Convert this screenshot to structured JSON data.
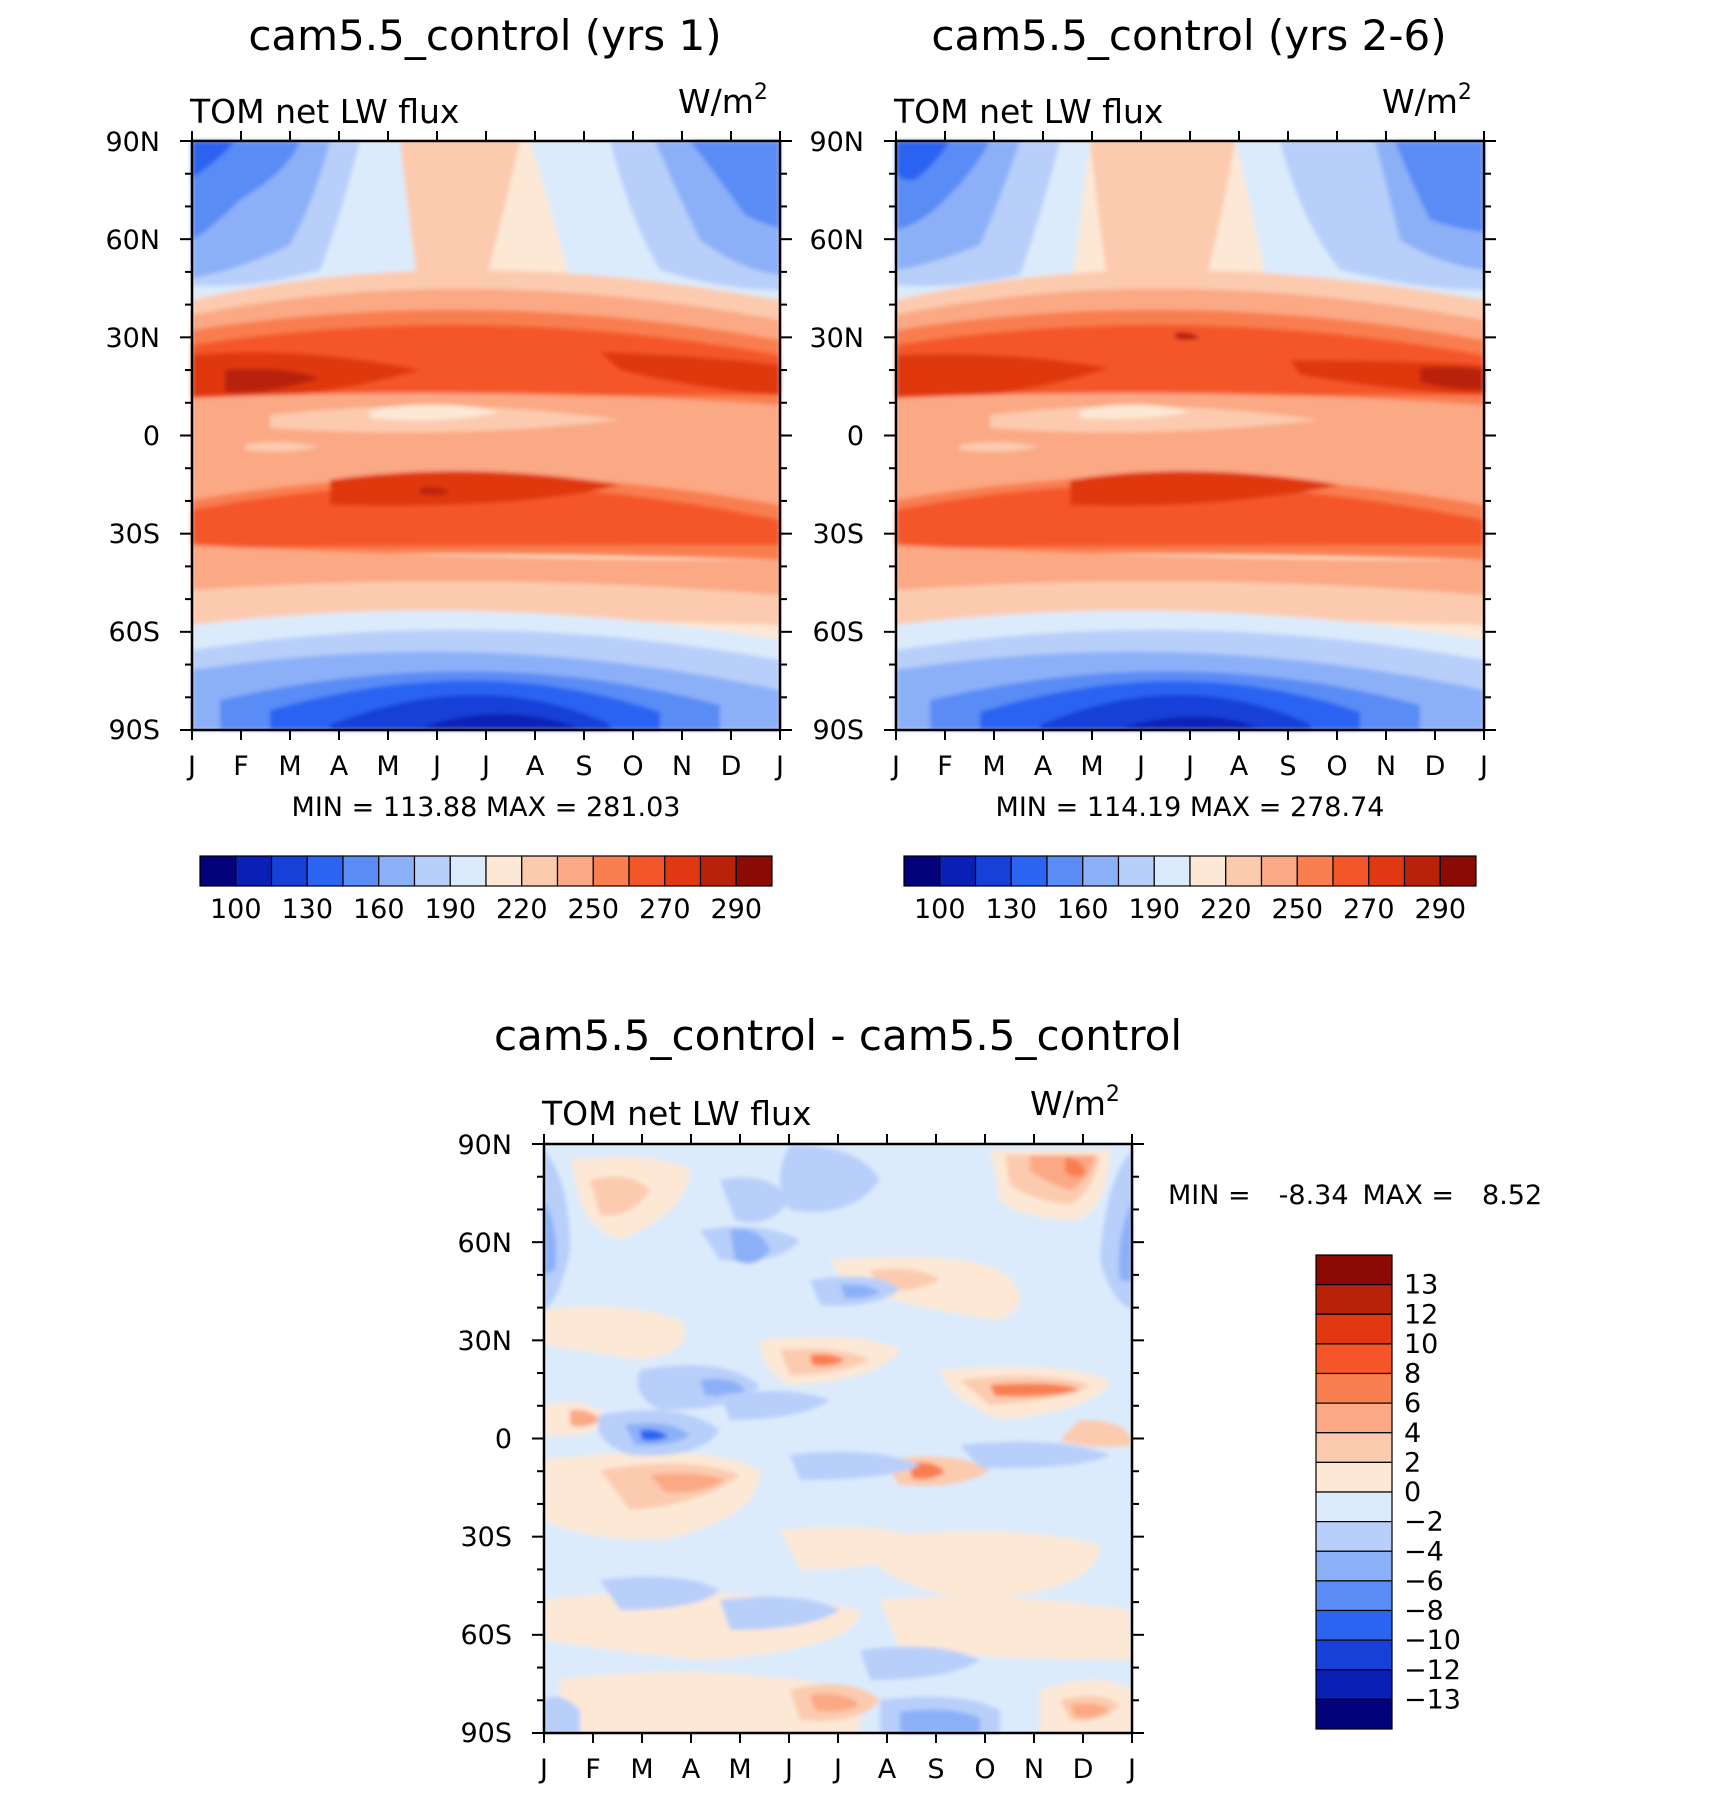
{
  "field_label": "TOM net LW flux",
  "units_label": "W/m",
  "units_exponent": "2",
  "colors": {
    "abs_scale": [
      "#02027a",
      "#0a20b4",
      "#1640d8",
      "#2c64f2",
      "#5a8cf6",
      "#8cb0f8",
      "#b8cffa",
      "#dcebfc",
      "#fde8d6",
      "#fccbaf",
      "#fba884",
      "#f97e50",
      "#f4562a",
      "#e03810",
      "#b82208",
      "#8c0a04"
    ],
    "diff_scale": [
      "#02027a",
      "#0a20b4",
      "#1640d8",
      "#2c64f2",
      "#5a8cf6",
      "#8cb0f8",
      "#b8cffa",
      "#dcebfc",
      "#fde8d6",
      "#fccbaf",
      "#fba884",
      "#f97e50",
      "#f4562a",
      "#e03810",
      "#b82208",
      "#8c0a04"
    ]
  },
  "chart_data": [
    {
      "type": "heatmap",
      "title": "cam5.5_control (yrs 1)",
      "subtitle_left": "TOM net LW flux",
      "x": [
        "J",
        "F",
        "M",
        "A",
        "M",
        "J",
        "J",
        "A",
        "S",
        "O",
        "N",
        "D",
        "J"
      ],
      "y_ticks": [
        "90N",
        "60N",
        "30N",
        "0",
        "30S",
        "60S",
        "90S"
      ],
      "ylim": [
        -90,
        90
      ],
      "min_label": "MIN =",
      "max_label": "MAX =",
      "min": "113.88",
      "max": "281.03",
      "colorbar_levels": [
        100,
        110,
        130,
        140,
        160,
        175,
        190,
        205,
        220,
        235,
        250,
        260,
        270,
        280,
        290
      ],
      "colorbar_labels": [
        "100",
        "130",
        "160",
        "190",
        "220",
        "250",
        "270",
        "290"
      ],
      "colorbar_label_slots": [
        0,
        2,
        4,
        6,
        8,
        10,
        12,
        14
      ]
    },
    {
      "type": "heatmap",
      "title": "cam5.5_control (yrs 2-6)",
      "subtitle_left": "TOM net LW flux",
      "x": [
        "J",
        "F",
        "M",
        "A",
        "M",
        "J",
        "J",
        "A",
        "S",
        "O",
        "N",
        "D",
        "J"
      ],
      "y_ticks": [
        "90N",
        "60N",
        "30N",
        "0",
        "30S",
        "60S",
        "90S"
      ],
      "ylim": [
        -90,
        90
      ],
      "min_label": "MIN =",
      "max_label": "MAX =",
      "min": "114.19",
      "max": "278.74",
      "colorbar_levels": [
        100,
        110,
        130,
        140,
        160,
        175,
        190,
        205,
        220,
        235,
        250,
        260,
        270,
        280,
        290
      ],
      "colorbar_labels": [
        "100",
        "130",
        "160",
        "190",
        "220",
        "250",
        "270",
        "290"
      ],
      "colorbar_label_slots": [
        0,
        2,
        4,
        6,
        8,
        10,
        12,
        14
      ]
    },
    {
      "type": "heatmap",
      "title": "cam5.5_control - cam5.5_control",
      "subtitle_left": "TOM net LW flux",
      "x": [
        "J",
        "F",
        "M",
        "A",
        "M",
        "J",
        "J",
        "A",
        "S",
        "O",
        "N",
        "D",
        "J"
      ],
      "y_ticks": [
        "90N",
        "60N",
        "30N",
        "0",
        "30S",
        "60S",
        "90S"
      ],
      "ylim": [
        -90,
        90
      ],
      "min_label": "MIN =",
      "max_label": "MAX =",
      "min": "-8.34",
      "max": "8.52",
      "colorbar_levels": [
        -13,
        -12,
        -10,
        -8,
        -6,
        -4,
        -2,
        0,
        2,
        4,
        6,
        8,
        10,
        12,
        13
      ],
      "colorbar_labels": [
        "13",
        "12",
        "10",
        "8",
        "6",
        "4",
        "2",
        "0",
        "−2",
        "−4",
        "−6",
        "−8",
        "−10",
        "−12",
        "−13"
      ]
    }
  ]
}
